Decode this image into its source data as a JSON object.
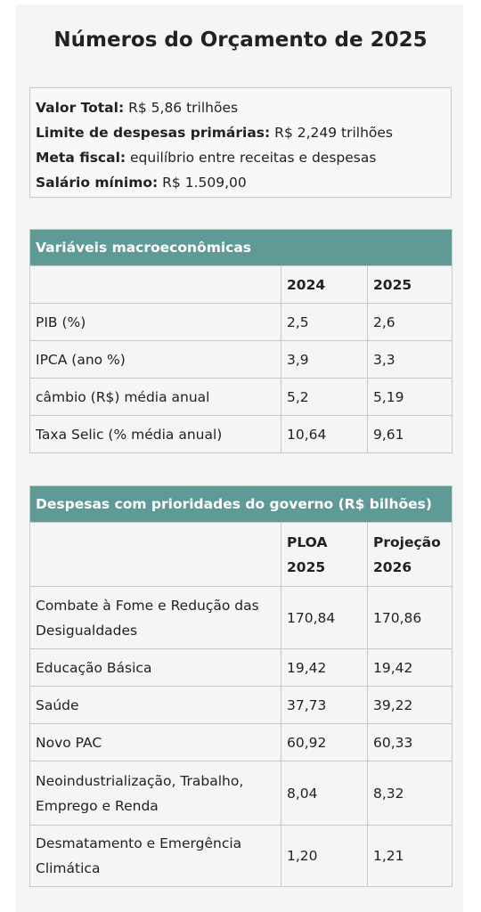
{
  "title": "Números do Orçamento de 2025",
  "summary": [
    {
      "label": "Valor Total:",
      "value": "R$ 5,86 trilhões"
    },
    {
      "label": "Limite de despesas primárias:",
      "value": "R$ 2,249 trilhões"
    },
    {
      "label": "Meta fiscal:",
      "value": "equilíbrio entre receitas e despesas"
    },
    {
      "label": "Salário mínimo:",
      "value": "R$ 1.509,00"
    }
  ],
  "tables": [
    {
      "caption": "Variáveis macroeconômicas",
      "columns": [
        "",
        "2024",
        "2025"
      ],
      "rows": [
        [
          "PIB (%)",
          "2,5",
          "2,6"
        ],
        [
          "IPCA (ano %)",
          "3,9",
          "3,3"
        ],
        [
          "câmbio (R$) média anual",
          "5,2",
          "5,19"
        ],
        [
          "Taxa Selic (% média anual)",
          "10,64",
          "9,61"
        ]
      ]
    },
    {
      "caption": "Despesas com prioridades do governo (R$ bilhões)",
      "columns": [
        "",
        "PLOA 2025",
        "Projeção 2026"
      ],
      "rows": [
        [
          "Combate à Fome e Redução das Desigualdades",
          "170,84",
          "170,86"
        ],
        [
          "Educação Básica",
          "19,42",
          "19,42"
        ],
        [
          "Saúde",
          "37,73",
          "39,22"
        ],
        [
          "Novo PAC",
          "60,92",
          "60,33"
        ],
        [
          "Neoindustrialização, Trabalho, Emprego e Renda",
          "8,04",
          "8,32"
        ],
        [
          "Desmatamento e Emergência Climática",
          "1,20",
          "1,21"
        ]
      ]
    }
  ]
}
